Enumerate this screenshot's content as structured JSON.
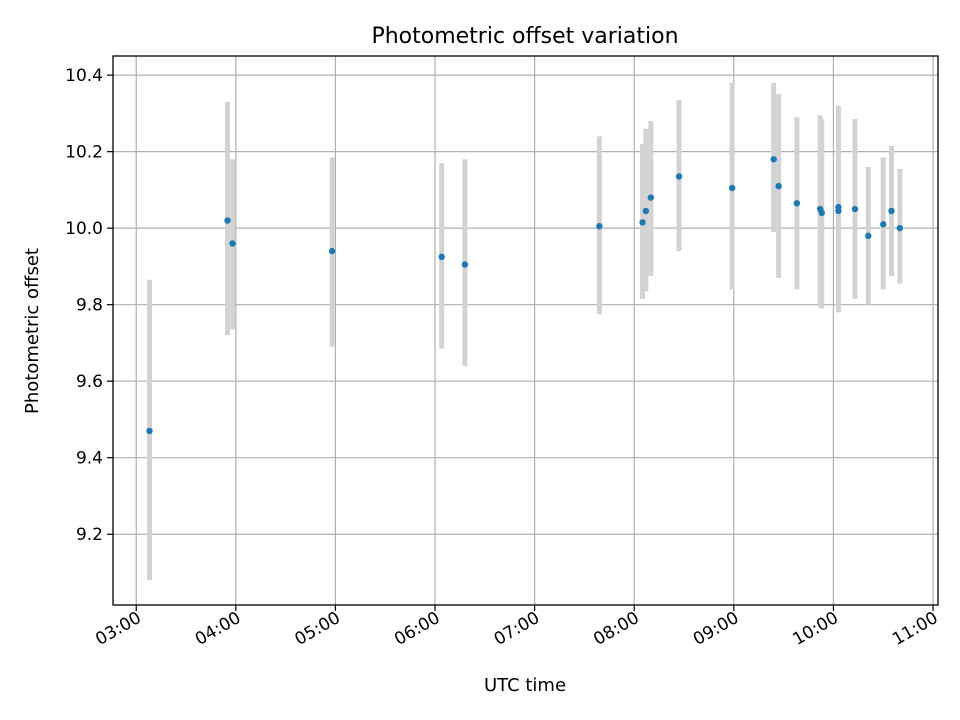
{
  "chart_data": {
    "type": "scatter",
    "title": "Photometric offset variation",
    "xlabel": "UTC time",
    "ylabel": "Photometric offset",
    "x_tick_labels": [
      "03:00",
      "04:00",
      "05:00",
      "06:00",
      "07:00",
      "08:00",
      "09:00",
      "10:00",
      "11:00"
    ],
    "y_tick_labels": [
      "9.2",
      "9.4",
      "9.6",
      "9.8",
      "10.0",
      "10.2",
      "10.4"
    ],
    "xlim": [
      "02:46",
      "11:03"
    ],
    "ylim": [
      9.015,
      10.45
    ],
    "grid": true,
    "colors": {
      "point": "#1f77b4",
      "errorbar": "#d3d3d3",
      "grid": "#b0b0b0"
    },
    "points": [
      {
        "x": "03:08",
        "y": 9.47,
        "ylow": 9.08,
        "yhigh": 9.865
      },
      {
        "x": "03:55",
        "y": 10.02,
        "ylow": 9.72,
        "yhigh": 10.33
      },
      {
        "x": "03:58",
        "y": 9.96,
        "ylow": 9.735,
        "yhigh": 10.18
      },
      {
        "x": "04:58",
        "y": 9.94,
        "ylow": 9.69,
        "yhigh": 10.185
      },
      {
        "x": "06:04",
        "y": 9.925,
        "ylow": 9.685,
        "yhigh": 10.17
      },
      {
        "x": "06:18",
        "y": 9.905,
        "ylow": 9.64,
        "yhigh": 10.18
      },
      {
        "x": "07:39",
        "y": 10.005,
        "ylow": 9.775,
        "yhigh": 10.24
      },
      {
        "x": "08:05",
        "y": 10.015,
        "ylow": 9.815,
        "yhigh": 10.22
      },
      {
        "x": "08:07",
        "y": 10.045,
        "ylow": 9.835,
        "yhigh": 10.26
      },
      {
        "x": "08:10",
        "y": 10.08,
        "ylow": 9.875,
        "yhigh": 10.28
      },
      {
        "x": "08:27",
        "y": 10.135,
        "ylow": 9.94,
        "yhigh": 10.335
      },
      {
        "x": "08:59",
        "y": 10.105,
        "ylow": 9.84,
        "yhigh": 10.38
      },
      {
        "x": "09:24",
        "y": 10.18,
        "ylow": 9.99,
        "yhigh": 10.38
      },
      {
        "x": "09:27",
        "y": 10.11,
        "ylow": 9.87,
        "yhigh": 10.35
      },
      {
        "x": "09:38",
        "y": 10.065,
        "ylow": 9.84,
        "yhigh": 10.29
      },
      {
        "x": "09:52",
        "y": 10.05,
        "ylow": 9.795,
        "yhigh": 10.295
      },
      {
        "x": "09:53",
        "y": 10.04,
        "ylow": 9.79,
        "yhigh": 10.285
      },
      {
        "x": "10:03",
        "y": 10.045,
        "ylow": 9.78,
        "yhigh": 10.32
      },
      {
        "x": "10:03",
        "y": 10.055,
        "ylow": 9.8,
        "yhigh": 10.3
      },
      {
        "x": "10:13",
        "y": 10.05,
        "ylow": 9.815,
        "yhigh": 10.285
      },
      {
        "x": "10:21",
        "y": 9.98,
        "ylow": 9.8,
        "yhigh": 10.16
      },
      {
        "x": "10:30",
        "y": 10.01,
        "ylow": 9.84,
        "yhigh": 10.185
      },
      {
        "x": "10:35",
        "y": 10.045,
        "ylow": 9.875,
        "yhigh": 10.215
      },
      {
        "x": "10:40",
        "y": 10.0,
        "ylow": 9.855,
        "yhigh": 10.155
      }
    ]
  }
}
